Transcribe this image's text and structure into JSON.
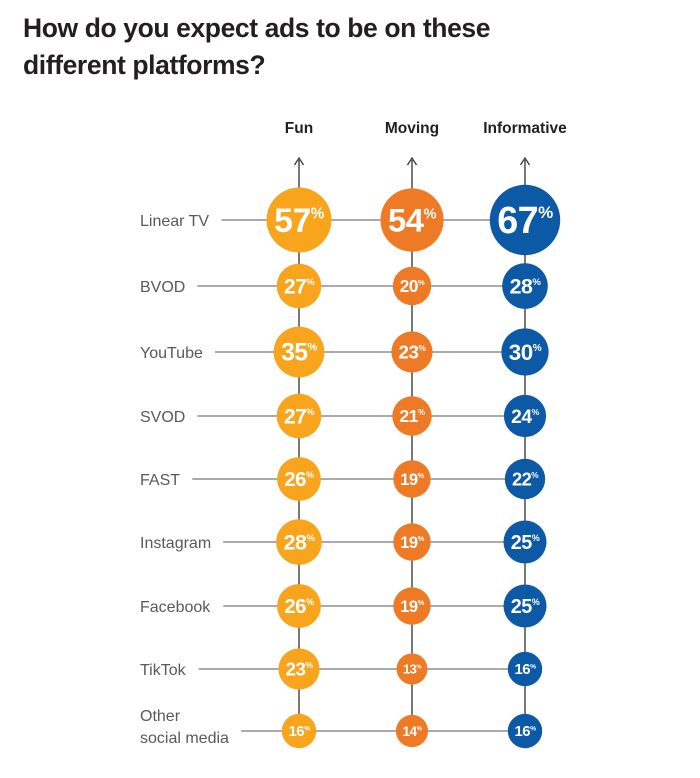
{
  "title": {
    "line1": "How do you expect ads to be on these",
    "line2": "different platforms?"
  },
  "chart_data": {
    "type": "heatmap",
    "variant": "bubble-matrix",
    "title": "How do you expect ads to be on these different platforms?",
    "unit": "%",
    "legend_position": "none",
    "grid": "connector-lines-with-up-arrows",
    "columns": [
      {
        "label": "Fun",
        "color": "#F8A41D"
      },
      {
        "label": "Moving",
        "color": "#EF7A25"
      },
      {
        "label": "Informative",
        "color": "#0C59A6"
      }
    ],
    "rows": [
      {
        "label": "Linear TV",
        "values": [
          57,
          54,
          67
        ]
      },
      {
        "label": "BVOD",
        "values": [
          27,
          20,
          28
        ]
      },
      {
        "label": "YouTube",
        "values": [
          35,
          23,
          30
        ]
      },
      {
        "label": "SVOD",
        "values": [
          27,
          21,
          24
        ]
      },
      {
        "label": "FAST",
        "values": [
          26,
          19,
          22
        ]
      },
      {
        "label": "Instagram",
        "values": [
          28,
          19,
          25
        ]
      },
      {
        "label": "Facebook",
        "values": [
          26,
          19,
          25
        ]
      },
      {
        "label": "TikTok",
        "values": [
          23,
          13,
          16
        ]
      },
      {
        "label": "Other social media",
        "values": [
          16,
          14,
          16
        ]
      }
    ]
  },
  "style": {
    "background": "#FFFFFF",
    "title_color": "#231F20",
    "header_color": "#231F20",
    "label_color": "#58595B",
    "row_line_color": "#77787B",
    "column_line_color": "#414042",
    "value_text_color": "#FFFFFF"
  }
}
